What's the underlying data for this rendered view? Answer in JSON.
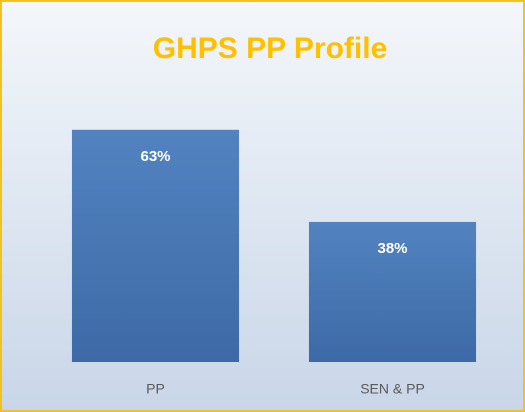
{
  "chart_data": {
    "type": "bar",
    "title": "GHPS PP Profile",
    "categories": [
      "PP",
      "SEN & PP"
    ],
    "values": [
      63,
      38
    ],
    "value_labels": [
      "63%",
      "38%"
    ],
    "color": "#4a7ab8",
    "ylim": [
      0,
      70
    ]
  }
}
